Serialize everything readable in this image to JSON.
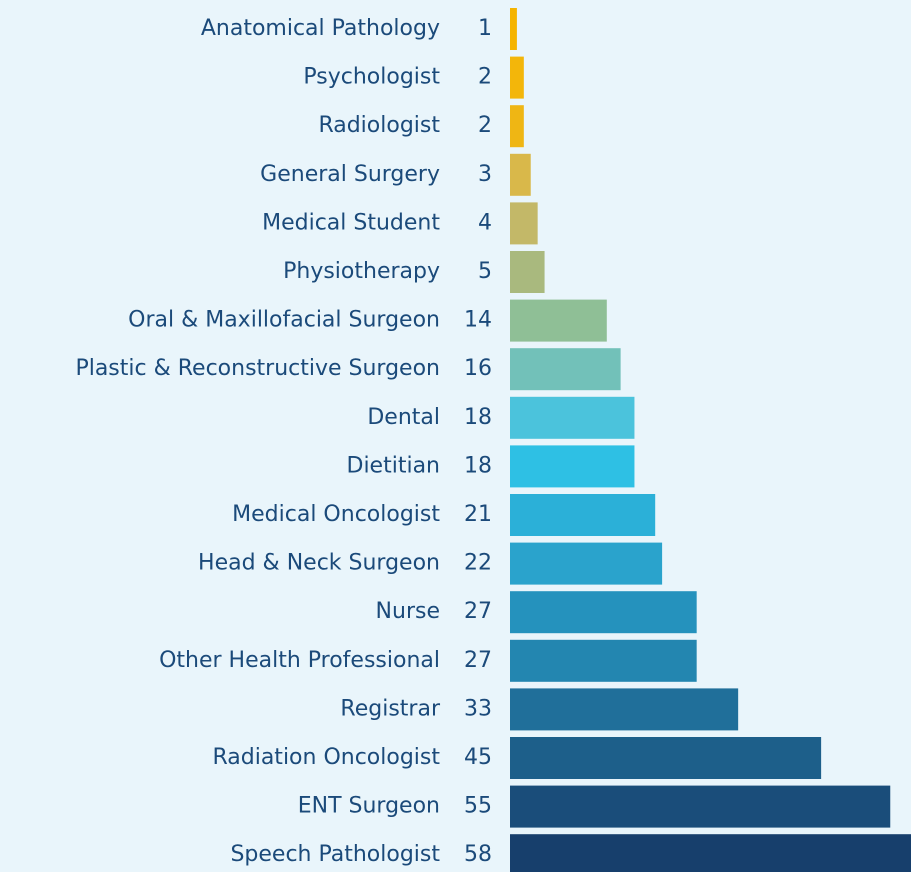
{
  "chart_data": {
    "type": "bar",
    "orientation": "horizontal",
    "categories": [
      "Anatomical Pathology",
      "Psychologist",
      "Radiologist",
      "General Surgery",
      "Medical Student",
      "Physiotherapy",
      "Oral & Maxillofacial Surgeon",
      "Plastic & Reconstructive Surgeon",
      "Dental",
      "Dietitian",
      "Medical Oncologist",
      "Head & Neck Surgeon",
      "Nurse",
      "Other Health Professional",
      "Registrar",
      "Radiation Oncologist",
      "ENT Surgeon",
      "Speech Pathologist"
    ],
    "values": [
      1,
      2,
      2,
      3,
      4,
      5,
      14,
      16,
      18,
      18,
      21,
      22,
      27,
      27,
      33,
      45,
      55,
      58
    ],
    "colors": [
      "#f5b400",
      "#f3b60a",
      "#efb614",
      "#d9b84a",
      "#c3b868",
      "#a9b97e",
      "#8fbf96",
      "#72c1b9",
      "#4bc3dc",
      "#2ec0e4",
      "#2bb0d8",
      "#2aa3cc",
      "#2592bd",
      "#2386b0",
      "#206f9a",
      "#1d5f8a",
      "#1a4d7a",
      "#173f6c"
    ]
  }
}
